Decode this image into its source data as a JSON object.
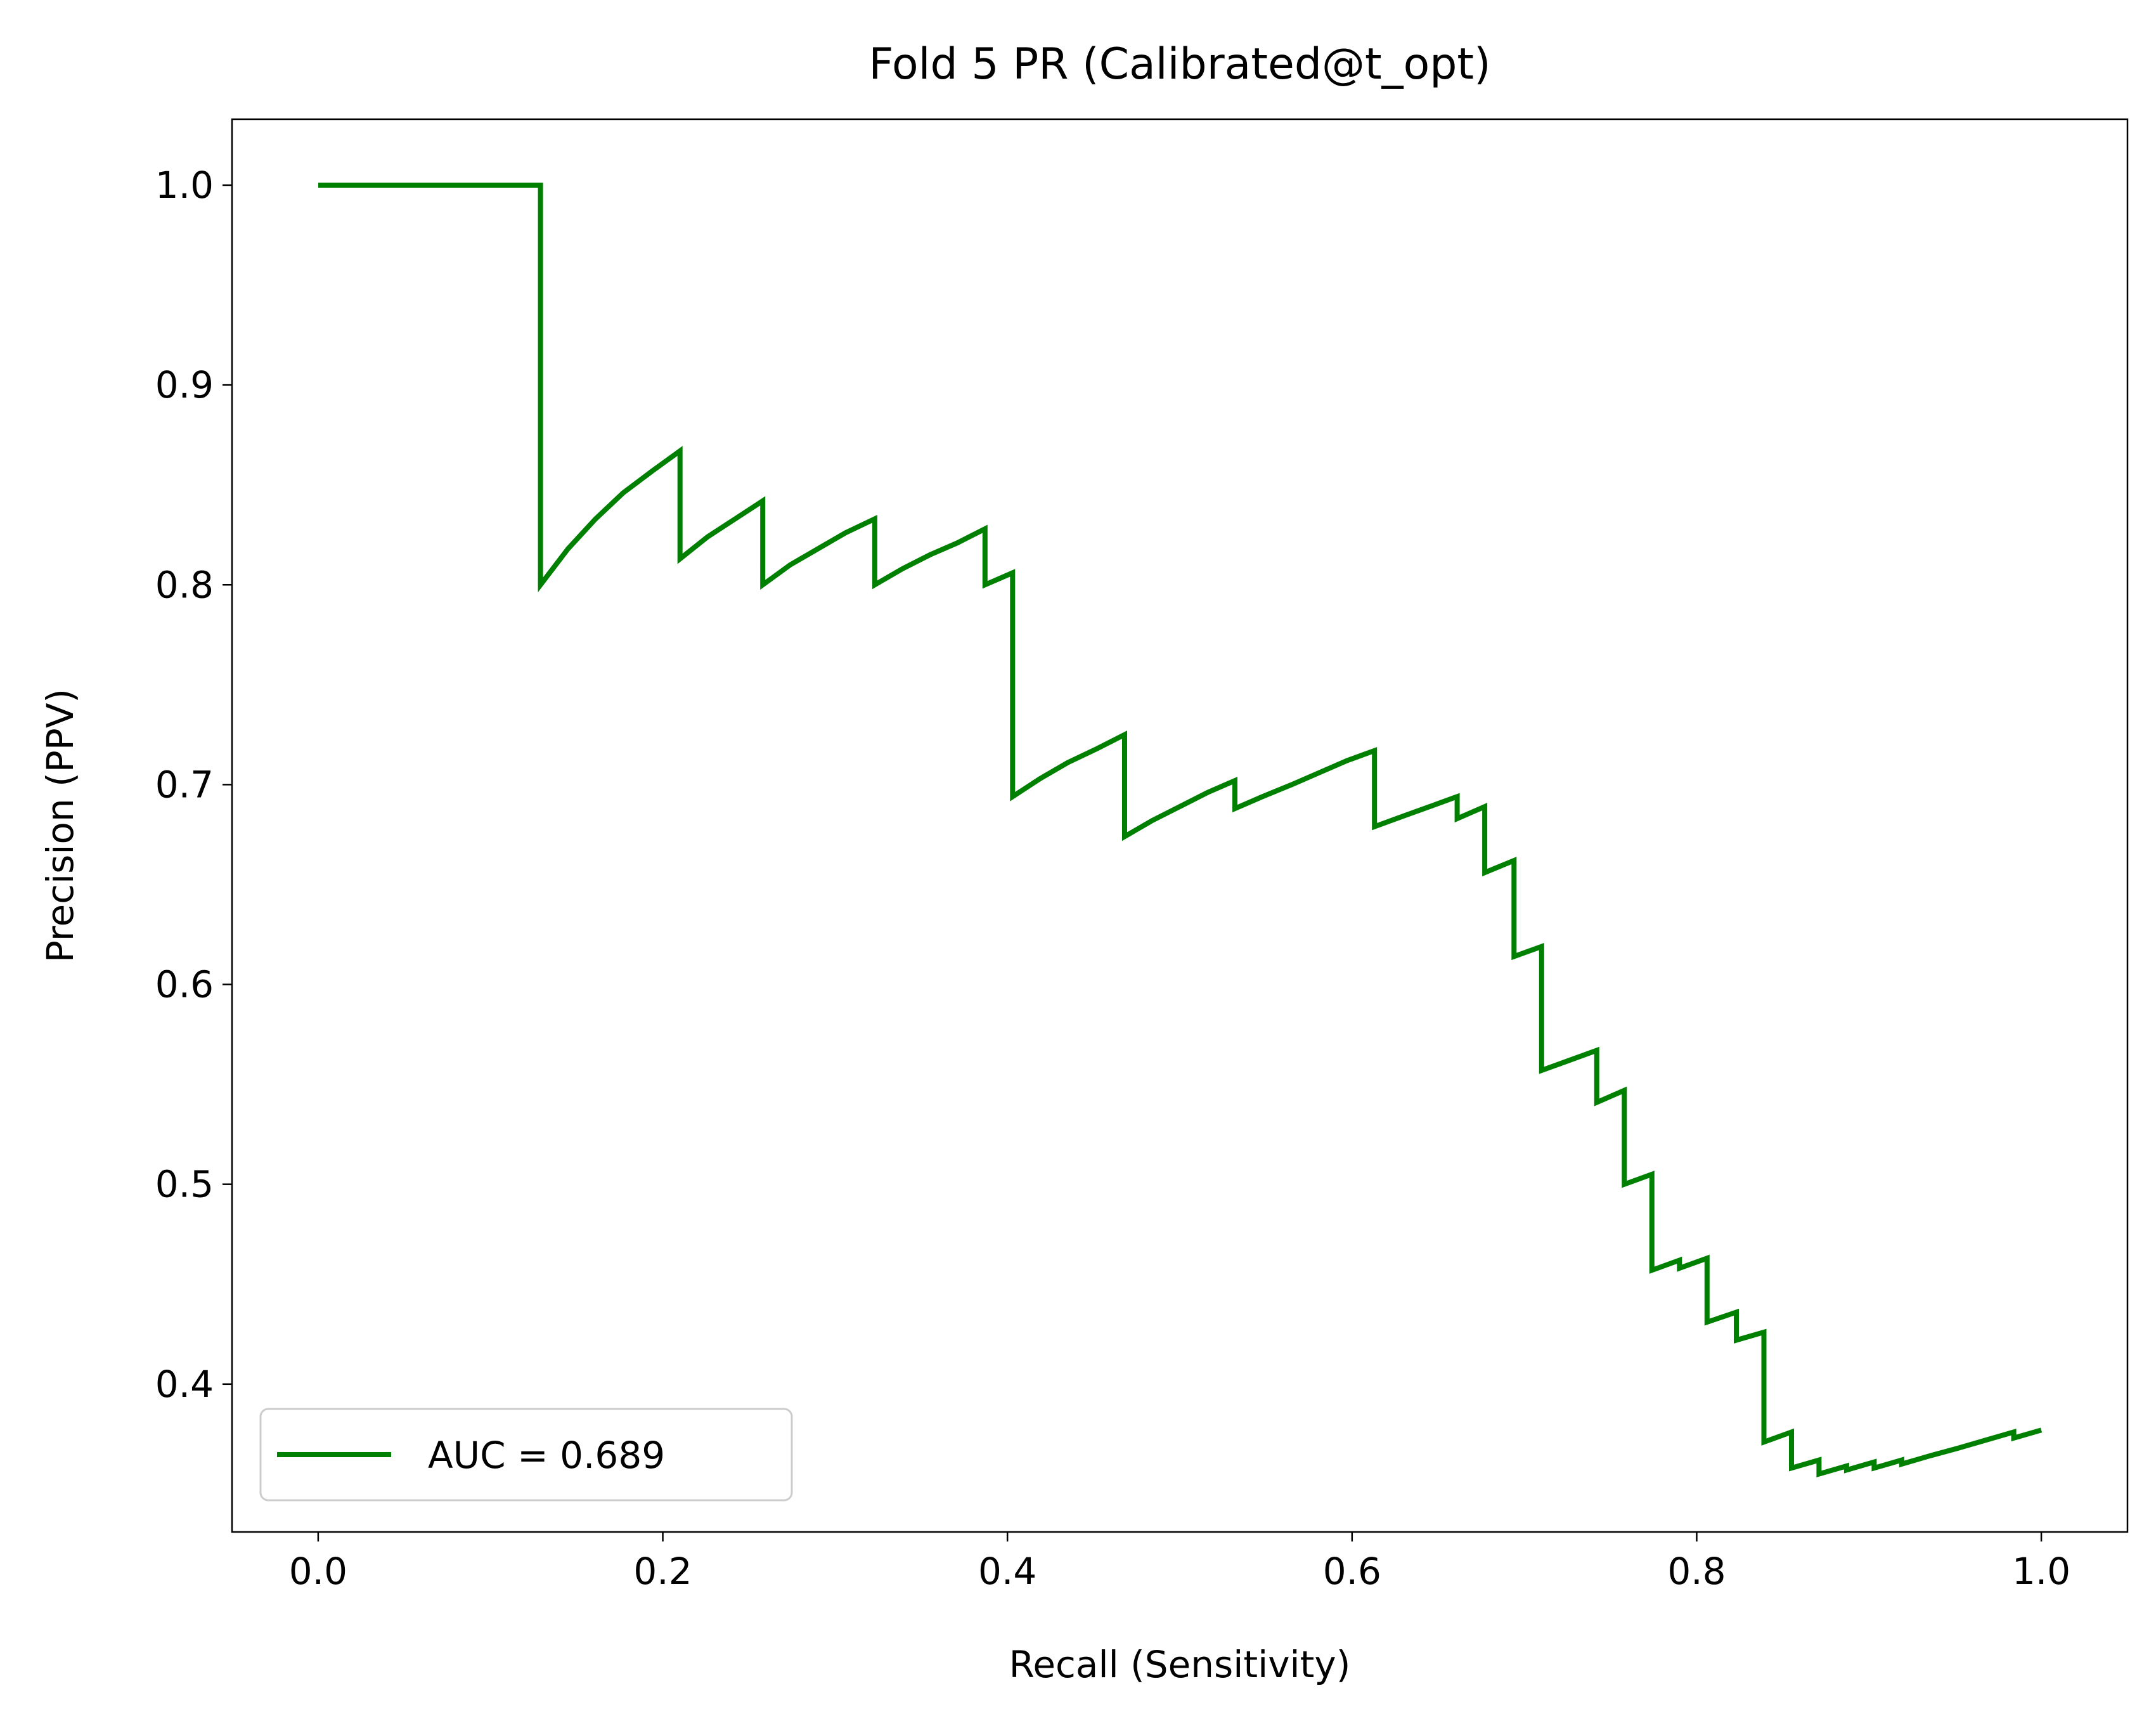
{
  "chart_data": {
    "type": "line",
    "title": "Fold 5 PR (Calibrated@t_opt)",
    "xlabel": "Recall (Sensitivity)",
    "ylabel": "Precision (PPV)",
    "xlim": [
      -0.05,
      1.05
    ],
    "ylim": [
      0.326,
      1.033
    ],
    "xticks": [
      0.0,
      0.2,
      0.4,
      0.6,
      0.8,
      1.0
    ],
    "xtick_labels": [
      "0.0",
      "0.2",
      "0.4",
      "0.6",
      "0.8",
      "1.0"
    ],
    "yticks": [
      0.4,
      0.5,
      0.6,
      0.7,
      0.8,
      0.9,
      1.0
    ],
    "ytick_labels": [
      "0.4",
      "0.5",
      "0.6",
      "0.7",
      "0.8",
      "0.9",
      "1.0"
    ],
    "grid": false,
    "legend_position": "lower-left",
    "series": [
      {
        "name": "AUC = 0.689",
        "color": "#008000",
        "x": [
          0.0,
          0.129,
          0.129,
          0.145,
          0.161,
          0.177,
          0.194,
          0.21,
          0.21,
          0.226,
          0.242,
          0.258,
          0.258,
          0.274,
          0.29,
          0.306,
          0.323,
          0.323,
          0.339,
          0.355,
          0.371,
          0.387,
          0.387,
          0.403,
          0.403,
          0.419,
          0.435,
          0.452,
          0.468,
          0.468,
          0.484,
          0.5,
          0.516,
          0.532,
          0.532,
          0.548,
          0.565,
          0.581,
          0.597,
          0.613,
          0.613,
          0.629,
          0.645,
          0.661,
          0.661,
          0.677,
          0.677,
          0.694,
          0.694,
          0.71,
          0.71,
          0.726,
          0.742,
          0.742,
          0.758,
          0.758,
          0.774,
          0.774,
          0.79,
          0.79,
          0.806,
          0.806,
          0.823,
          0.823,
          0.839,
          0.839,
          0.855,
          0.855,
          0.871,
          0.871,
          0.887,
          0.887,
          0.903,
          0.903,
          0.919,
          0.919,
          0.935,
          0.952,
          0.968,
          0.984,
          0.984,
          1.0
        ],
        "y": [
          1.0,
          1.0,
          0.8,
          0.818,
          0.833,
          0.846,
          0.857,
          0.867,
          0.813,
          0.824,
          0.833,
          0.842,
          0.8,
          0.81,
          0.818,
          0.826,
          0.833,
          0.8,
          0.808,
          0.815,
          0.821,
          0.828,
          0.8,
          0.806,
          0.694,
          0.703,
          0.711,
          0.718,
          0.725,
          0.674,
          0.682,
          0.689,
          0.696,
          0.702,
          0.688,
          0.694,
          0.7,
          0.706,
          0.712,
          0.717,
          0.679,
          0.684,
          0.689,
          0.694,
          0.683,
          0.689,
          0.656,
          0.662,
          0.614,
          0.619,
          0.557,
          0.562,
          0.567,
          0.541,
          0.547,
          0.5,
          0.505,
          0.457,
          0.462,
          0.458,
          0.463,
          0.431,
          0.436,
          0.422,
          0.426,
          0.371,
          0.376,
          0.358,
          0.362,
          0.355,
          0.359,
          0.357,
          0.361,
          0.358,
          0.362,
          0.36,
          0.364,
          0.368,
          0.372,
          0.376,
          0.373,
          0.377
        ]
      }
    ]
  }
}
